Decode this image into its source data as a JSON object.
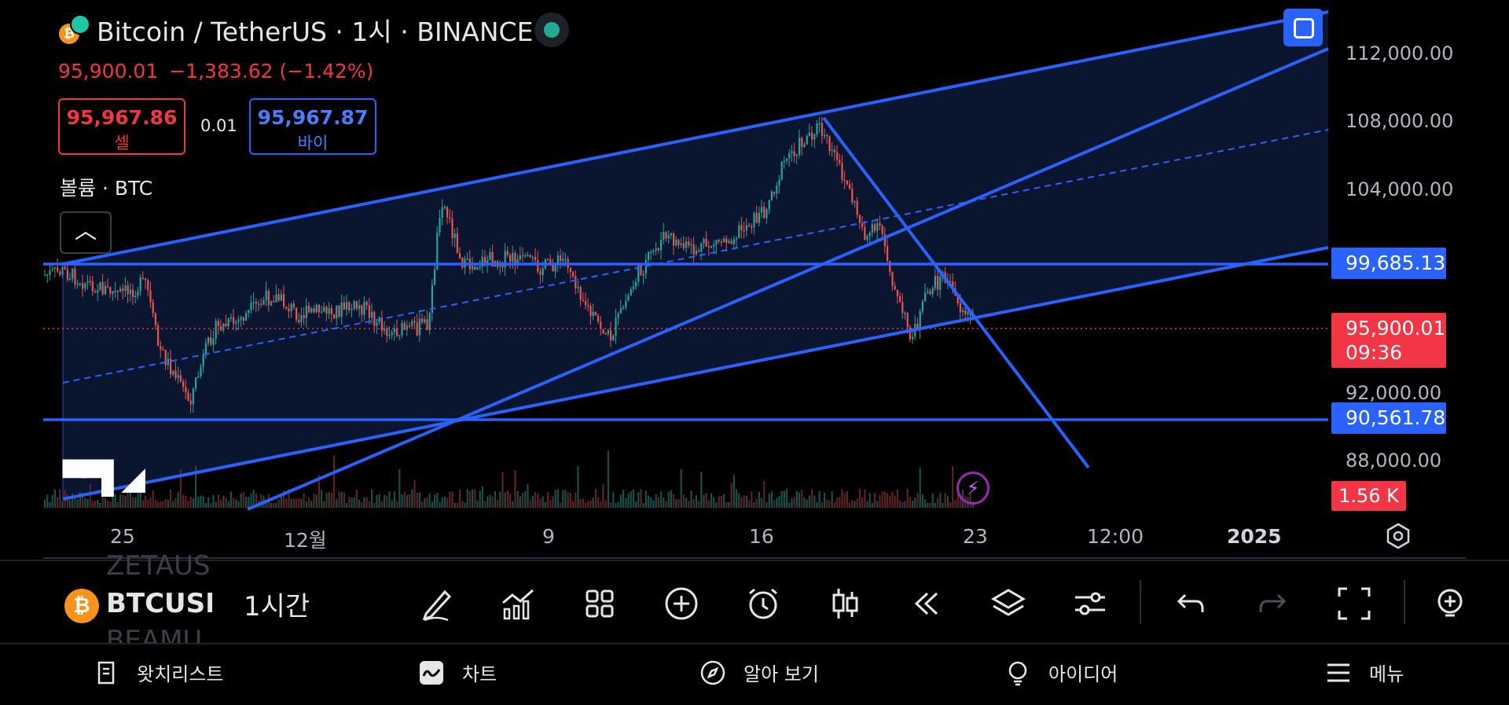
{
  "header": {
    "title": "Bitcoin / TetherUS · 1시 · BINANCE",
    "last_price": "95,900.01",
    "change": "−1,383.62 (−1.42%)"
  },
  "trade": {
    "sell_price": "95,967.86",
    "sell_label": "셀",
    "spread": "0.01",
    "buy_price": "95,967.87",
    "buy_label": "바이"
  },
  "volume_label": "볼륨 · BTC",
  "price_axis": {
    "ticks": [
      "112,000.00",
      "108,000.00",
      "104,000.00",
      "92,000.00",
      "88,000.00"
    ],
    "level_labels": [
      "99,685.13",
      "90,561.78"
    ],
    "current_price": "95,900.01",
    "countdown": "09:36",
    "volume_value": "1.56 K"
  },
  "time_axis": {
    "ticks": [
      "25",
      "12월",
      "9",
      "16",
      "23",
      "12:00",
      "2025"
    ]
  },
  "colors": {
    "background": "#000000",
    "drawing_blue": "#2962ff",
    "channel_fill": "#0d1a3a",
    "up": "#26a69a",
    "down": "#ef5350",
    "sell": "#f23645"
  },
  "toolbar": {
    "symbol": "BTCUSD",
    "symbol_above": "ZETAUS",
    "symbol_below": "BEAMU",
    "interval": "1시간",
    "icons": [
      "pencil-icon",
      "indicators-icon",
      "grid-icon",
      "plus-circle-icon",
      "alarm-icon",
      "candles-icon",
      "replay-icon",
      "layers-icon",
      "settings-sliders-icon",
      "undo-icon",
      "redo-icon",
      "fullscreen-icon",
      "add-indicator-icon"
    ]
  },
  "bottom_nav": {
    "items": [
      {
        "label": "왓치리스트",
        "icon": "watchlist-icon"
      },
      {
        "label": "차트",
        "icon": "chart-icon"
      },
      {
        "label": "알아 보기",
        "icon": "compass-icon"
      },
      {
        "label": "아이디어",
        "icon": "lightbulb-icon"
      },
      {
        "label": "메뉴",
        "icon": "menu-icon"
      }
    ]
  }
}
